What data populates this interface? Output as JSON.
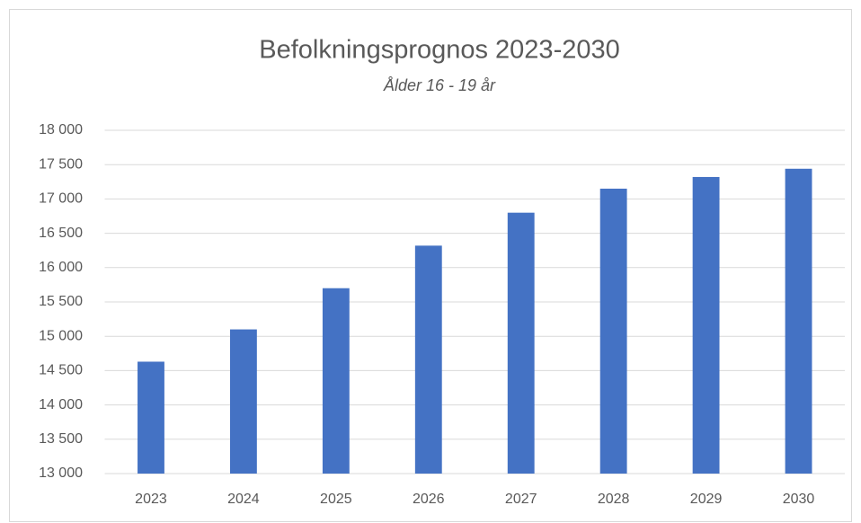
{
  "chart_data": {
    "type": "bar",
    "title": "Befolkningsprognos 2023-2030",
    "subtitle": "Ålder 16 - 19 år",
    "categories": [
      "2023",
      "2024",
      "2025",
      "2026",
      "2027",
      "2028",
      "2029",
      "2030"
    ],
    "values": [
      14630,
      15100,
      15700,
      16320,
      16800,
      17150,
      17320,
      17440
    ],
    "color": "#4472c4",
    "ylim": [
      13000,
      18000
    ],
    "yticks": [
      {
        "value": 13000,
        "label": "13 000"
      },
      {
        "value": 13500,
        "label": "13 500"
      },
      {
        "value": 14000,
        "label": "14 000"
      },
      {
        "value": 14500,
        "label": "14 500"
      },
      {
        "value": 15000,
        "label": "15 000"
      },
      {
        "value": 15500,
        "label": "15 500"
      },
      {
        "value": 16000,
        "label": "16 000"
      },
      {
        "value": 16500,
        "label": "16 500"
      },
      {
        "value": 17000,
        "label": "17 000"
      },
      {
        "value": 17500,
        "label": "17 500"
      },
      {
        "value": 18000,
        "label": "18 000"
      }
    ],
    "grid": true
  }
}
